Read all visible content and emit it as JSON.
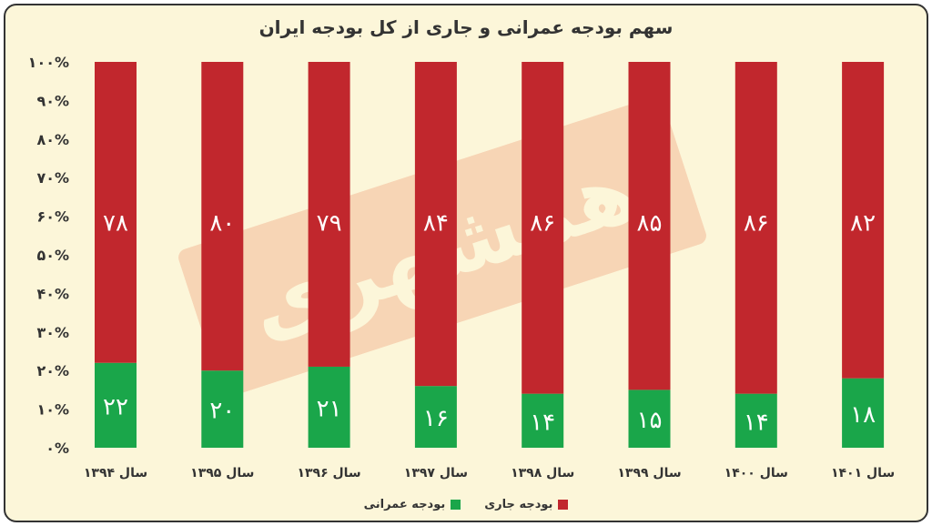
{
  "chart_data": {
    "type": "bar",
    "stacked": true,
    "title": "سهم بودجه عمرانی و جاری از کل بودجه ایران",
    "categories": [
      "سال ۱۳۹۴",
      "سال ۱۳۹۵",
      "سال ۱۳۹۶",
      "سال ۱۳۹۷",
      "سال ۱۳۹۸",
      "سال ۱۳۹۹",
      "سال ۱۴۰۰",
      "سال ۱۴۰۱"
    ],
    "series": [
      {
        "name": "بودجه عمرانی",
        "color": "#1aa64a",
        "values": [
          22,
          20,
          21,
          16,
          14,
          15,
          14,
          18
        ],
        "labels": [
          "۲۲",
          "۲۰",
          "۲۱",
          "۱۶",
          "۱۴",
          "۱۵",
          "۱۴",
          "۱۸"
        ]
      },
      {
        "name": "بودجه جاری",
        "color": "#c1272d",
        "values": [
          78,
          80,
          79,
          84,
          86,
          85,
          86,
          82
        ],
        "labels": [
          "۷۸",
          "۸۰",
          "۷۹",
          "۸۴",
          "۸۶",
          "۸۵",
          "۸۶",
          "۸۲"
        ]
      }
    ],
    "ylim": [
      0,
      100
    ],
    "ytick_labels": [
      "۰%",
      "۱۰%",
      "۲۰%",
      "۳۰%",
      "۴۰%",
      "۵۰%",
      "۶۰%",
      "۷۰%",
      "۸۰%",
      "۹۰%",
      "۱۰۰%"
    ],
    "legend_position": "bottom",
    "grid": false
  },
  "watermark_text": "همشهری"
}
